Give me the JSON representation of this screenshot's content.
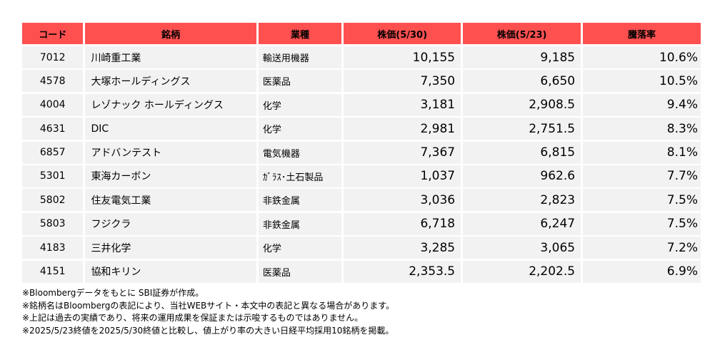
{
  "table": {
    "headers": [
      "コード",
      "銘柄",
      "業種",
      "株価(5/30)",
      "株価(5/23)",
      "騰落率"
    ],
    "rows": [
      {
        "code": "7012",
        "name": "川崎重工業",
        "sector": "輸送用機器",
        "price_530": "10,155",
        "price_523": "9,185",
        "change": "10.6%"
      },
      {
        "code": "4578",
        "name": "大塚ホールディングス",
        "sector": "医薬品",
        "price_530": "7,350",
        "price_523": "6,650",
        "change": "10.5%"
      },
      {
        "code": "4004",
        "name": "レゾナック ホールディングス",
        "sector": "化学",
        "price_530": "3,181",
        "price_523": "2,908.5",
        "change": "9.4%"
      },
      {
        "code": "4631",
        "name": "DIC",
        "sector": "化学",
        "price_530": "2,981",
        "price_523": "2,751.5",
        "change": "8.3%"
      },
      {
        "code": "6857",
        "name": "アドバンテスト",
        "sector": "電気機器",
        "price_530": "7,367",
        "price_523": "6,815",
        "change": "8.1%"
      },
      {
        "code": "5301",
        "name": "東海カーボン",
        "sector": "ｶﾞﾗｽ･土石製品",
        "price_530": "1,037",
        "price_523": "962.6",
        "change": "7.7%"
      },
      {
        "code": "5802",
        "name": "住友電気工業",
        "sector": "非鉄金属",
        "price_530": "3,036",
        "price_523": "2,823",
        "change": "7.5%"
      },
      {
        "code": "5803",
        "name": "フジクラ",
        "sector": "非鉄金属",
        "price_530": "6,718",
        "price_523": "6,247",
        "change": "7.5%"
      },
      {
        "code": "4183",
        "name": "三井化学",
        "sector": "化学",
        "price_530": "3,285",
        "price_523": "3,065",
        "change": "7.2%"
      },
      {
        "code": "4151",
        "name": "協和キリン",
        "sector": "医薬品",
        "price_530": "2,353.5",
        "price_523": "2,202.5",
        "change": "6.9%"
      }
    ]
  },
  "notes": [
    "※Bloombergデータをもとに SBI証券が作成。",
    "※銘柄名はBloombergの表記により、当社WEBサイト・本文中の表記と異なる場合があります。",
    "※上記は過去の実績であり、将来の運用成果を保証または示唆するものではありません。",
    "※2025/5/23終値を2025/5/30終値と比較し、値上がり率の大きい日経平均採用10銘柄を掲載。"
  ],
  "colors": {
    "header_bg": "#ff5050",
    "row_bg": "#f2f2f2"
  }
}
